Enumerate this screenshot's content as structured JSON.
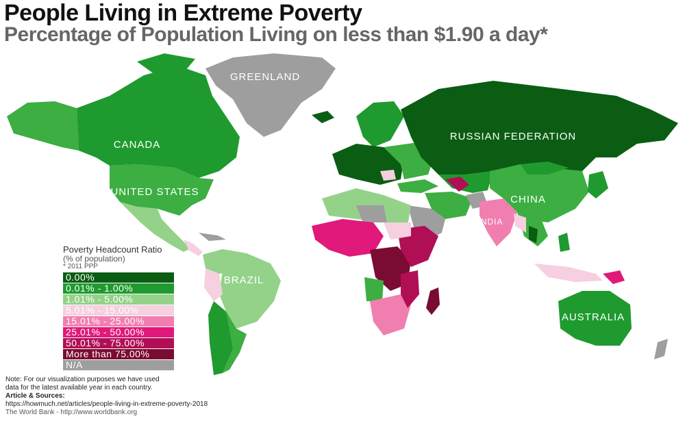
{
  "title": "People Living in Extreme Poverty",
  "subtitle": "Percentage of Population Living on less than $1.90 a day*",
  "labels": {
    "greenland": "GREENLAND",
    "canada": "CANADA",
    "united_states": "UNITED STATES",
    "brazil": "BRAZIL",
    "russia": "RUSSIAN FEDERATION",
    "china": "CHINA",
    "india": "INDIA",
    "australia": "AUSTRALIA"
  },
  "legend": {
    "title": "Poverty Headcount Ratio",
    "subtitle": "(% of population)",
    "note": "* 2011 PPP",
    "items": [
      {
        "label": "0.00%",
        "color": "#0b5d13"
      },
      {
        "label": "0.01% - 1.00%",
        "color": "#1f9a2f"
      },
      {
        "label": "1.01% - 5.00%",
        "color": "#94d28a"
      },
      {
        "label": "5.01% - 15.00%",
        "color": "#f6cfe0"
      },
      {
        "label": "15.01% - 25.00%",
        "color": "#f07fb0"
      },
      {
        "label": "25.01% - 50.00%",
        "color": "#e0197a"
      },
      {
        "label": "50.01% - 75.00%",
        "color": "#b10f55"
      },
      {
        "label": "More than 75.00%",
        "color": "#7a0b32"
      },
      {
        "label": "N/A",
        "color": "#9e9e9e"
      }
    ]
  },
  "notes": {
    "note1": "Note: For our visualization purposes we have used",
    "note2": "data for the latest available year in each country.",
    "sources_heading": "Article & Sources:",
    "source1": "https://howmuch.net/articles/people-living-in-extreme-poverty-2018",
    "source2": "The World Bank - http://www.worldbank.org"
  }
}
